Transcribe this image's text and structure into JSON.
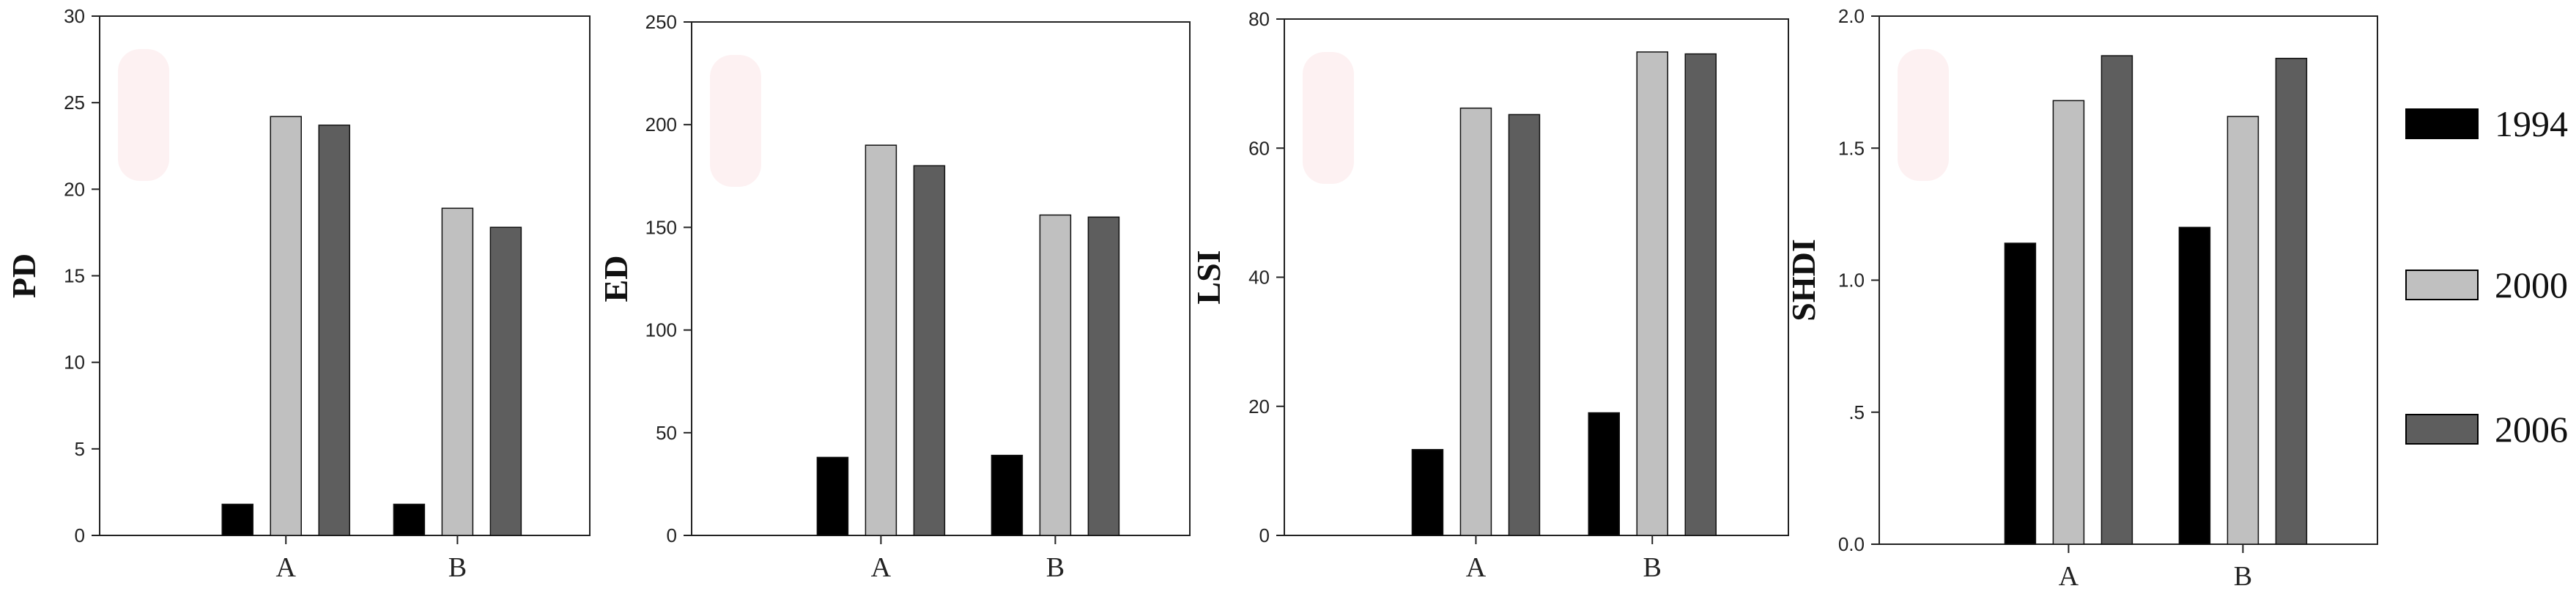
{
  "colors": {
    "1994": "#000000",
    "2000": "#c0c0c0",
    "2006": "#5e5e5e"
  },
  "legend": {
    "entries": [
      "1994",
      "2000",
      "2006"
    ]
  },
  "chart_data": [
    {
      "type": "bar",
      "ylabel": "PD",
      "categories": [
        "A",
        "B"
      ],
      "ylim": [
        0,
        30
      ],
      "ticks": [
        "0",
        "5",
        "10",
        "15",
        "20",
        "25",
        "30"
      ],
      "series": [
        {
          "name": "1994",
          "values": [
            1.8,
            1.8
          ]
        },
        {
          "name": "2000",
          "values": [
            24.2,
            18.9
          ]
        },
        {
          "name": "2006",
          "values": [
            23.7,
            17.8
          ]
        }
      ]
    },
    {
      "type": "bar",
      "ylabel": "ED",
      "categories": [
        "A",
        "B"
      ],
      "ylim": [
        0,
        250
      ],
      "ticks": [
        "0",
        "50",
        "100",
        "150",
        "200",
        "250"
      ],
      "series": [
        {
          "name": "1994",
          "values": [
            38,
            39
          ]
        },
        {
          "name": "2000",
          "values": [
            190,
            156
          ]
        },
        {
          "name": "2006",
          "values": [
            180,
            155
          ]
        }
      ]
    },
    {
      "type": "bar",
      "ylabel": "LSI",
      "categories": [
        "A",
        "B"
      ],
      "ylim": [
        0,
        80
      ],
      "ticks": [
        "0",
        "20",
        "40",
        "60",
        "80"
      ],
      "series": [
        {
          "name": "1994",
          "values": [
            13.3,
            19.0
          ]
        },
        {
          "name": "2000",
          "values": [
            66.2,
            74.9
          ]
        },
        {
          "name": "2006",
          "values": [
            65.2,
            74.6
          ]
        }
      ]
    },
    {
      "type": "bar",
      "ylabel": "SHDI",
      "categories": [
        "A",
        "B"
      ],
      "ylim": [
        0,
        2
      ],
      "ticks": [
        "0.0",
        ".5",
        "1.0",
        "1.5",
        "2.0"
      ],
      "series": [
        {
          "name": "1994",
          "values": [
            1.14,
            1.2
          ]
        },
        {
          "name": "2000",
          "values": [
            1.68,
            1.62
          ]
        },
        {
          "name": "2006",
          "values": [
            1.85,
            1.84
          ]
        }
      ]
    }
  ]
}
